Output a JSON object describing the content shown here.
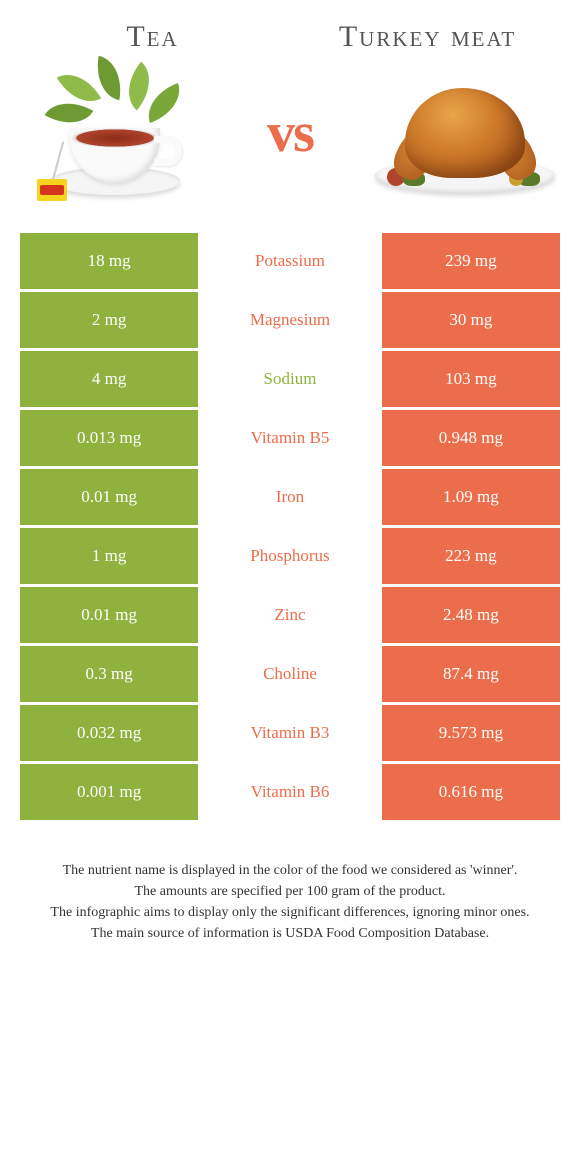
{
  "header": {
    "left_title": "Tea",
    "right_title": "Turkey meat",
    "vs": "vs"
  },
  "colors": {
    "left": "#8fb23e",
    "right": "#ec6d4b"
  },
  "rows": [
    {
      "left": "18 mg",
      "label": "Potassium",
      "right": "239 mg",
      "winner": "right"
    },
    {
      "left": "2 mg",
      "label": "Magnesium",
      "right": "30 mg",
      "winner": "right"
    },
    {
      "left": "4 mg",
      "label": "Sodium",
      "right": "103 mg",
      "winner": "left"
    },
    {
      "left": "0.013 mg",
      "label": "Vitamin B5",
      "right": "0.948 mg",
      "winner": "right"
    },
    {
      "left": "0.01 mg",
      "label": "Iron",
      "right": "1.09 mg",
      "winner": "right"
    },
    {
      "left": "1 mg",
      "label": "Phosphorus",
      "right": "223 mg",
      "winner": "right"
    },
    {
      "left": "0.01 mg",
      "label": "Zinc",
      "right": "2.48 mg",
      "winner": "right"
    },
    {
      "left": "0.3 mg",
      "label": "Choline",
      "right": "87.4 mg",
      "winner": "right"
    },
    {
      "left": "0.032 mg",
      "label": "Vitamin B3",
      "right": "9.573 mg",
      "winner": "right"
    },
    {
      "left": "0.001 mg",
      "label": "Vitamin B6",
      "right": "0.616 mg",
      "winner": "right"
    }
  ],
  "footnotes": [
    "The nutrient name is displayed in the color of the food we considered as 'winner'.",
    "The amounts are specified per 100 gram of the product.",
    "The infographic aims to display only the significant differences, ignoring minor ones.",
    "The main source of information is USDA Food Composition Database."
  ]
}
